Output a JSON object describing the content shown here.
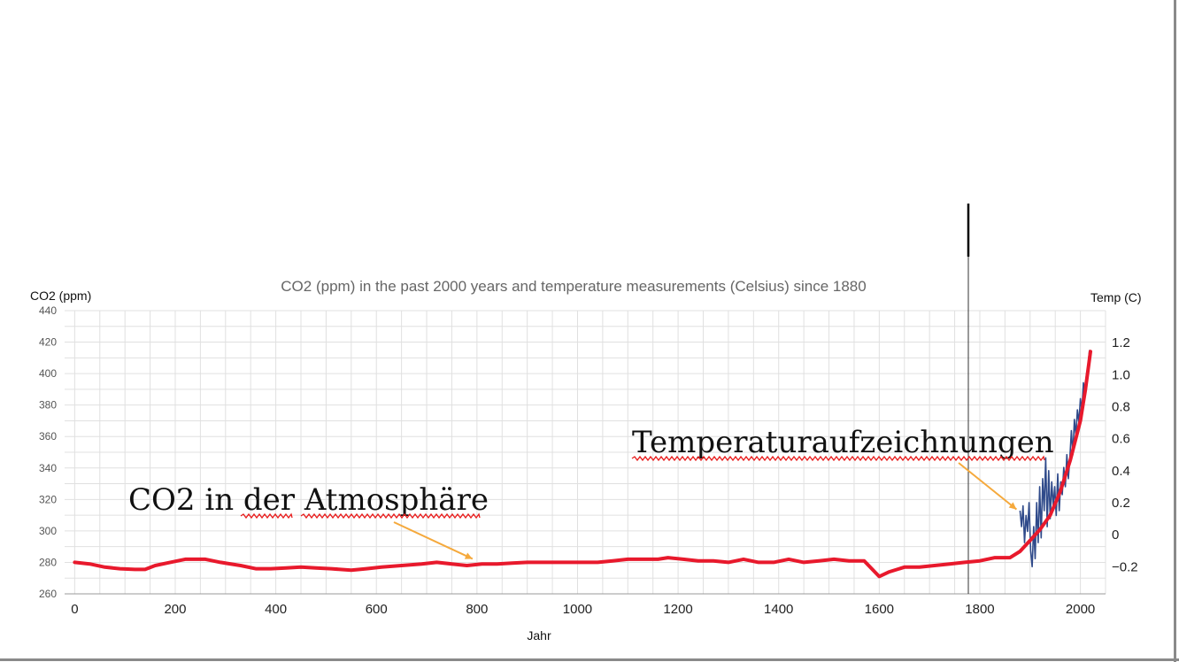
{
  "chart_data": {
    "type": "line",
    "title": "CO2 (ppm) in the past 2000 years and temperature measurements (Celsius) since 1880",
    "xlabel": "Jahr",
    "ylabel_left": "CO2 (ppm)",
    "ylabel_right": "Temp (C)",
    "xlim": [
      -20,
      2050
    ],
    "ylim_left": [
      260,
      440
    ],
    "ylim_right": [
      -0.37,
      1.4
    ],
    "xticks": [
      0,
      200,
      400,
      600,
      800,
      1000,
      1200,
      1400,
      1600,
      1800,
      2000
    ],
    "yticks_left": [
      260,
      280,
      300,
      320,
      340,
      360,
      380,
      400,
      420,
      440
    ],
    "yticks_right": [
      -0.2,
      0,
      0.2,
      0.4,
      0.6,
      0.8,
      1.0,
      1.2
    ],
    "yticks_right_labels": [
      "−0.2",
      "0",
      "0.2",
      "0.4",
      "0.6",
      "0.8",
      "1.0",
      "1.2"
    ],
    "grid": true,
    "series": [
      {
        "axis": "left",
        "color": "#e8192c",
        "x": [
          0,
          30,
          60,
          90,
          120,
          140,
          160,
          190,
          220,
          260,
          290,
          330,
          360,
          390,
          420,
          450,
          480,
          510,
          550,
          580,
          610,
          650,
          690,
          720,
          750,
          780,
          810,
          840,
          870,
          900,
          940,
          980,
          1010,
          1040,
          1070,
          1100,
          1130,
          1160,
          1180,
          1210,
          1240,
          1270,
          1300,
          1330,
          1360,
          1390,
          1420,
          1450,
          1480,
          1510,
          1540,
          1570,
          1600,
          1620,
          1650,
          1680,
          1710,
          1740,
          1770,
          1800,
          1830,
          1860,
          1880,
          1900,
          1920,
          1940,
          1960,
          1980,
          2000,
          2010,
          2020
        ],
        "values": [
          280,
          279,
          277,
          276,
          275.5,
          275.5,
          278,
          280,
          282,
          282,
          280,
          278,
          276,
          276,
          276.5,
          277,
          276.5,
          276,
          275,
          276,
          277,
          278,
          279,
          280,
          279,
          278,
          279,
          279,
          279.5,
          280,
          280,
          280,
          280,
          280,
          281,
          282,
          282,
          282,
          283,
          282,
          281,
          281,
          280,
          282,
          280,
          280,
          282,
          280,
          281,
          282,
          281,
          281,
          271,
          274,
          277,
          277,
          278,
          279,
          280,
          281,
          283,
          283,
          287,
          294,
          301,
          310,
          325,
          345,
          370,
          390,
          414
        ]
      },
      {
        "axis": "right",
        "color": "#2f4a8a",
        "x": [
          1880,
          1883,
          1886,
          1889,
          1892,
          1895,
          1898,
          1901,
          1904,
          1907,
          1910,
          1913,
          1916,
          1919,
          1922,
          1925,
          1928,
          1931,
          1934,
          1937,
          1940,
          1943,
          1946,
          1949,
          1952,
          1955,
          1958,
          1961,
          1964,
          1967,
          1970,
          1973,
          1976,
          1979,
          1982,
          1985,
          1988,
          1991,
          1994,
          1997,
          2000,
          2003,
          2006,
          2009,
          2012,
          2015,
          2018,
          2020
        ],
        "values": [
          0.15,
          0.05,
          0.18,
          -0.05,
          0.12,
          0.02,
          0.2,
          -0.1,
          -0.2,
          0.05,
          -0.15,
          0.2,
          -0.05,
          0.3,
          -0.02,
          0.35,
          0.15,
          0.48,
          0.05,
          0.4,
          0.1,
          0.33,
          0.18,
          0.3,
          0.12,
          0.38,
          0.15,
          0.33,
          0.25,
          0.42,
          0.3,
          0.5,
          0.35,
          0.48,
          0.65,
          0.5,
          0.72,
          0.62,
          0.78,
          0.7,
          0.85,
          0.78,
          0.95,
          0.88,
          1.0,
          1.05,
          1.15,
          1.1
        ]
      }
    ],
    "annotations": [
      {
        "text": "CO2 in der Atmosphäre",
        "x_data": 800,
        "y_data": 280
      },
      {
        "text": "Temperaturaufzeichnungen",
        "x_data": 1880,
        "y_data": 0.18
      }
    ],
    "arrow_color": "#f5a93c",
    "spellcheck_color": "#e81c1c",
    "underlined_words": {
      "annotation_0": [
        "der",
        "Atmosphäre"
      ],
      "annotation_1": [
        "Temperaturaufzeichnungen"
      ]
    }
  }
}
